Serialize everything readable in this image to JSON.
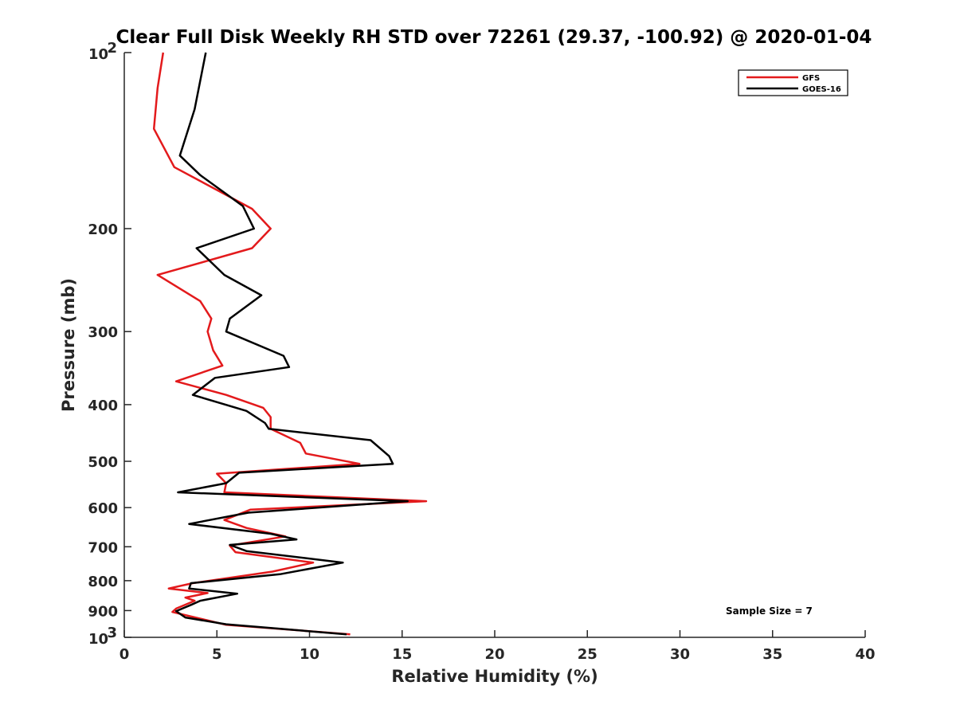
{
  "chart_data": {
    "type": "line",
    "title": "Clear Full Disk Weekly RH STD over 72261 (29.37, -100.92) @ 2020-01-04",
    "xlabel": "Relative Humidity (%)",
    "ylabel": "Pressure (mb)",
    "xlim": [
      0,
      40
    ],
    "ylim": [
      100,
      1000
    ],
    "yscale": "log",
    "yreversed": true,
    "x_ticks": [
      "0",
      "5",
      "10",
      "15",
      "20",
      "25",
      "30",
      "35",
      "40"
    ],
    "y_ticks": [
      {
        "value": 100,
        "label": "10",
        "sup": "2"
      },
      {
        "value": 200,
        "label": "200"
      },
      {
        "value": 300,
        "label": "300"
      },
      {
        "value": 400,
        "label": "400"
      },
      {
        "value": 500,
        "label": "500"
      },
      {
        "value": 600,
        "label": "600"
      },
      {
        "value": 700,
        "label": "700"
      },
      {
        "value": 800,
        "label": "800"
      },
      {
        "value": 900,
        "label": "900"
      },
      {
        "value": 1000,
        "label": "10",
        "sup": "3"
      }
    ],
    "grid": false,
    "legend_position": "top-right",
    "annotation": "Sample Size = 7",
    "series": [
      {
        "name": "GFS",
        "color": "#e31a1c",
        "points": [
          [
            2.1,
            100
          ],
          [
            1.8,
            115
          ],
          [
            1.6,
            135
          ],
          [
            2.7,
            157
          ],
          [
            6.9,
            185
          ],
          [
            7.9,
            200
          ],
          [
            6.9,
            216
          ],
          [
            1.8,
            240
          ],
          [
            4.1,
            266
          ],
          [
            4.7,
            285
          ],
          [
            4.5,
            300
          ],
          [
            4.8,
            323
          ],
          [
            5.3,
            343
          ],
          [
            2.8,
            365
          ],
          [
            5.5,
            385
          ],
          [
            7.5,
            405
          ],
          [
            7.9,
            420
          ],
          [
            7.9,
            440
          ],
          [
            9.5,
            465
          ],
          [
            9.8,
            485
          ],
          [
            12.7,
            505
          ],
          [
            5.0,
            525
          ],
          [
            5.5,
            545
          ],
          [
            5.4,
            565
          ],
          [
            16.3,
            585
          ],
          [
            6.8,
            605
          ],
          [
            5.4,
            630
          ],
          [
            6.6,
            650
          ],
          [
            8.7,
            672
          ],
          [
            5.7,
            697
          ],
          [
            6.0,
            715
          ],
          [
            10.2,
            745
          ],
          [
            8.0,
            772
          ],
          [
            3.7,
            808
          ],
          [
            2.4,
            825
          ],
          [
            4.5,
            840
          ],
          [
            3.3,
            855
          ],
          [
            3.8,
            866
          ],
          [
            2.8,
            893
          ],
          [
            2.6,
            905
          ],
          [
            5.5,
            952
          ],
          [
            12.2,
            988
          ]
        ]
      },
      {
        "name": "GOES-16",
        "color": "#000000",
        "points": [
          [
            4.4,
            100
          ],
          [
            3.8,
            125
          ],
          [
            3.0,
            150
          ],
          [
            4.1,
            162
          ],
          [
            6.4,
            183
          ],
          [
            7.0,
            200
          ],
          [
            3.9,
            216
          ],
          [
            5.4,
            240
          ],
          [
            7.4,
            260
          ],
          [
            5.7,
            285
          ],
          [
            5.5,
            300
          ],
          [
            8.6,
            330
          ],
          [
            8.9,
            345
          ],
          [
            4.9,
            360
          ],
          [
            3.7,
            385
          ],
          [
            6.6,
            410
          ],
          [
            7.6,
            430
          ],
          [
            7.8,
            440
          ],
          [
            13.3,
            460
          ],
          [
            14.3,
            490
          ],
          [
            14.5,
            505
          ],
          [
            6.2,
            523
          ],
          [
            5.5,
            545
          ],
          [
            2.9,
            565
          ],
          [
            15.3,
            585
          ],
          [
            6.7,
            612
          ],
          [
            3.5,
            640
          ],
          [
            7.9,
            665
          ],
          [
            9.3,
            680
          ],
          [
            5.7,
            695
          ],
          [
            6.6,
            712
          ],
          [
            11.8,
            745
          ],
          [
            8.4,
            780
          ],
          [
            3.6,
            808
          ],
          [
            3.5,
            825
          ],
          [
            6.1,
            842
          ],
          [
            4.1,
            866
          ],
          [
            3.6,
            880
          ],
          [
            2.8,
            902
          ],
          [
            3.3,
            925
          ],
          [
            5.5,
            950
          ],
          [
            12.0,
            988
          ]
        ]
      }
    ]
  }
}
